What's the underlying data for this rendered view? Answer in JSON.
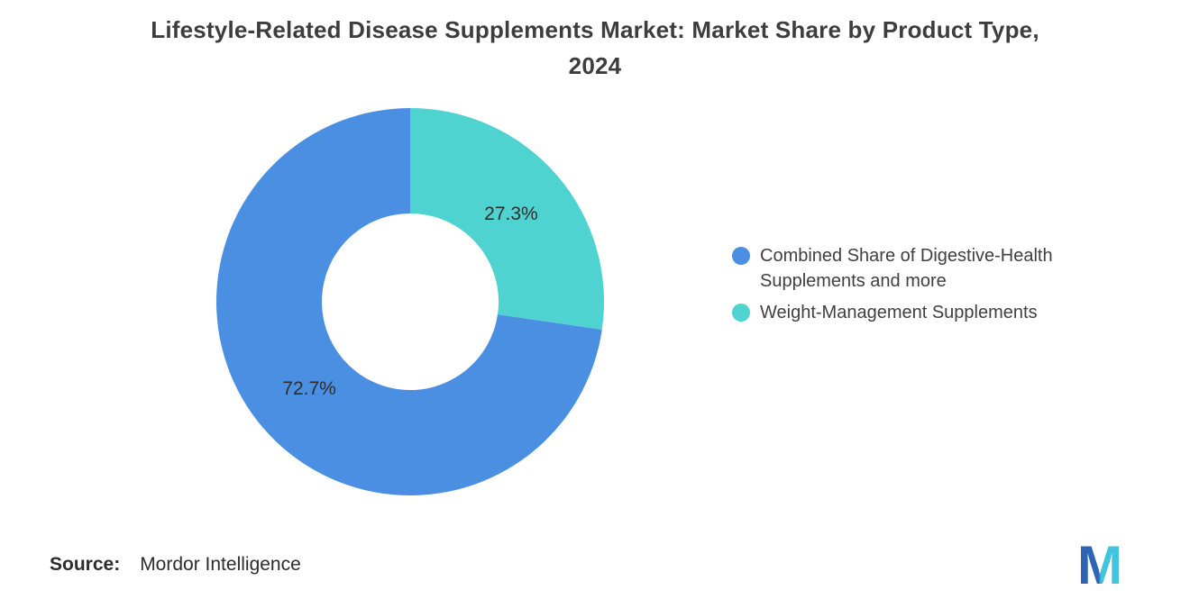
{
  "title": {
    "line1": "Lifestyle-Related Disease Supplements Market: Market Share by Product Type,",
    "line2": "2024"
  },
  "chart_data": {
    "type": "pie",
    "subtype": "donut",
    "title": "Lifestyle-Related Disease Supplements Market: Market Share by Product Type, 2024",
    "legend_position": "right",
    "start_angle_deg": 0,
    "direction": "clockwise",
    "hole_ratio": 0.455,
    "slices": [
      {
        "label": "Combined Share of Digestive-Health Supplements and more",
        "value": 72.7,
        "data_label": "72.7%",
        "color": "#4A8FE2"
      },
      {
        "label": "Weight-Management Supplements",
        "value": 27.3,
        "data_label": "27.3%",
        "color": "#4ED3D0"
      }
    ]
  },
  "source": {
    "prefix": "Source:",
    "text": "Mordor Intelligence"
  },
  "logo": {
    "letter": "M",
    "blue": "#2E64B5",
    "teal": "#41C4DE"
  }
}
